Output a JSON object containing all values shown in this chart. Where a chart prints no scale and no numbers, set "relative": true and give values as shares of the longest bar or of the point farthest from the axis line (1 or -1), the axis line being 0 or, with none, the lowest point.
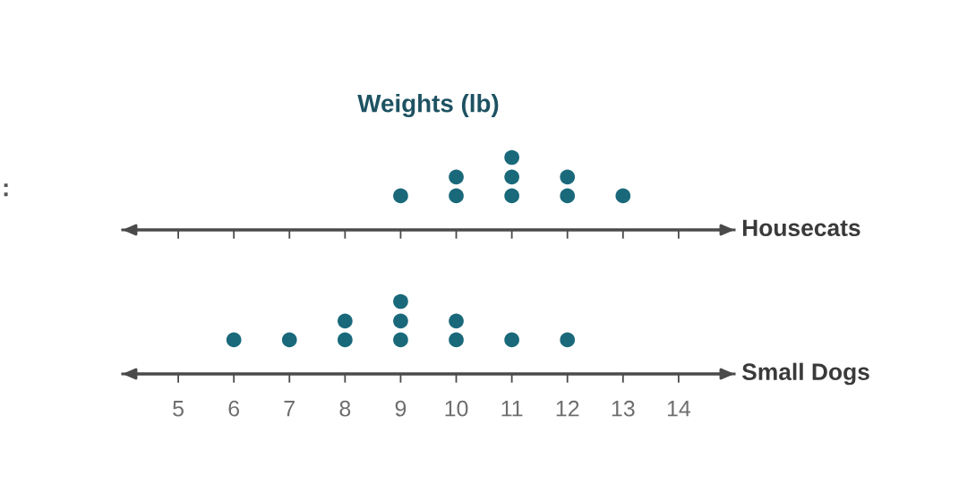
{
  "chart_data": [
    {
      "type": "scatter",
      "title": "Weights (lb)",
      "annotations": [
        ":"
      ],
      "relative": true,
      "x": [
        9,
        10,
        10,
        11,
        11,
        11,
        12,
        12,
        13
      ],
      "series": [
        {
          "name": "Housecats",
          "color": "#19697b",
          "values": [
            0.47,
            0.47,
            0.73,
            0.47,
            0.73,
            1,
            0.47,
            0.73,
            0.47
          ]
        }
      ],
      "xlim": [
        4,
        15
      ],
      "xticks": [
        5,
        6,
        7,
        8,
        9,
        10,
        11,
        12,
        13,
        14
      ],
      "tick_labels": false,
      "marker": "circle"
    },
    {
      "type": "scatter",
      "relative": true,
      "x": [
        6,
        7,
        8,
        8,
        9,
        9,
        9,
        10,
        10,
        11,
        12
      ],
      "series": [
        {
          "name": "Small Dogs",
          "color": "#19697b",
          "values": [
            0.47,
            0.47,
            0.47,
            0.73,
            0.47,
            0.73,
            1,
            0.47,
            0.73,
            0.47,
            0.47
          ]
        }
      ],
      "xlim": [
        4,
        15
      ],
      "xticks": [
        5,
        6,
        7,
        8,
        9,
        10,
        11,
        12,
        13,
        14
      ],
      "marker": "circle"
    }
  ]
}
